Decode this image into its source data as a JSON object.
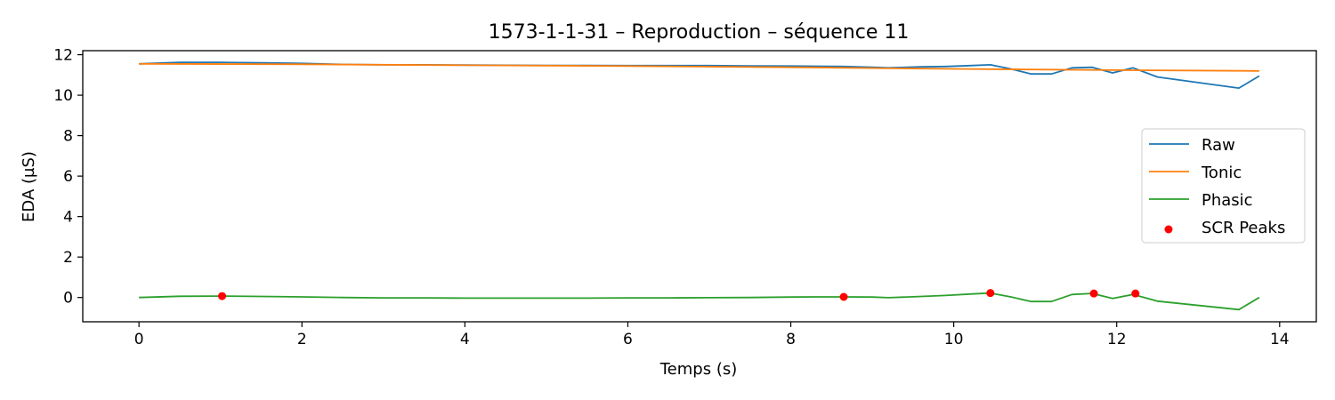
{
  "chart_data": {
    "type": "line",
    "title": "1573-1-1-31 – Reproduction – séquence 11",
    "xlabel": "Temps (s)",
    "ylabel": "EDA (µS)",
    "xlim": [
      -0.69,
      14.45
    ],
    "ylim": [
      -1.2,
      12.2
    ],
    "xticks": [
      0,
      2,
      4,
      6,
      8,
      10,
      12,
      14
    ],
    "yticks": [
      0,
      2,
      4,
      6,
      8,
      10,
      12
    ],
    "grid": false,
    "legend_position": "center-right",
    "series": [
      {
        "name": "Raw",
        "kind": "line",
        "color": "#1f77b4",
        "x": [
          0,
          0.5,
          1.0,
          1.5,
          2.0,
          2.5,
          3.0,
          3.5,
          4.0,
          4.5,
          5.0,
          5.5,
          6.0,
          6.5,
          7.0,
          7.5,
          8.0,
          8.3,
          8.65,
          9.0,
          9.2,
          9.6,
          9.9,
          10.2,
          10.45,
          10.7,
          10.95,
          11.2,
          11.45,
          11.7,
          11.95,
          12.2,
          12.5,
          13.5,
          13.75
        ],
        "y": [
          11.55,
          11.62,
          11.62,
          11.6,
          11.57,
          11.52,
          11.5,
          11.5,
          11.49,
          11.48,
          11.47,
          11.47,
          11.46,
          11.46,
          11.46,
          11.45,
          11.44,
          11.43,
          11.42,
          11.38,
          11.35,
          11.4,
          11.42,
          11.46,
          11.5,
          11.3,
          11.05,
          11.05,
          11.35,
          11.38,
          11.1,
          11.35,
          10.9,
          10.35,
          10.95
        ]
      },
      {
        "name": "Tonic",
        "kind": "line",
        "color": "#ff7f0e",
        "x": [
          0,
          2,
          4,
          6,
          8,
          10,
          12,
          13.75
        ],
        "y": [
          11.55,
          11.53,
          11.48,
          11.44,
          11.38,
          11.3,
          11.24,
          11.2
        ]
      },
      {
        "name": "Phasic",
        "kind": "line",
        "color": "#2ca02c",
        "x": [
          0,
          0.5,
          1.0,
          1.5,
          2.0,
          2.5,
          3.0,
          3.5,
          4.0,
          4.5,
          5.0,
          5.5,
          6.0,
          6.5,
          7.0,
          7.5,
          8.0,
          8.3,
          8.65,
          9.0,
          9.2,
          9.6,
          9.9,
          10.2,
          10.45,
          10.7,
          10.95,
          11.2,
          11.45,
          11.7,
          11.95,
          12.2,
          12.5,
          13.5,
          13.75
        ],
        "y": [
          0.0,
          0.06,
          0.07,
          0.05,
          0.03,
          0.0,
          -0.02,
          -0.02,
          -0.03,
          -0.03,
          -0.03,
          -0.03,
          -0.02,
          -0.02,
          -0.01,
          0.0,
          0.02,
          0.03,
          0.03,
          0.02,
          -0.01,
          0.05,
          0.1,
          0.17,
          0.22,
          0.03,
          -0.2,
          -0.2,
          0.15,
          0.2,
          -0.05,
          0.15,
          -0.18,
          -0.6,
          0.0
        ]
      },
      {
        "name": "SCR Peaks",
        "kind": "scatter",
        "color": "#ff0000",
        "x": [
          1.02,
          8.65,
          10.45,
          11.72,
          12.23
        ],
        "y": [
          0.07,
          0.03,
          0.22,
          0.2,
          0.2
        ]
      }
    ]
  }
}
